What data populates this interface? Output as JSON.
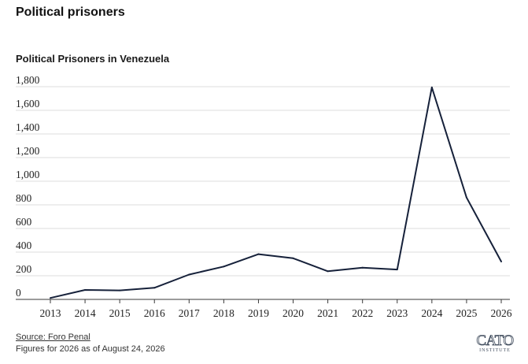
{
  "page": {
    "title": "Political prisoners"
  },
  "footer": {
    "source_label": "Source: Foro Penal",
    "note": "Figures for 2026 as of August 24, 2026"
  },
  "logo": {
    "name": "CATO",
    "subtitle": "INSTITUTE",
    "color": "#3e4a5b"
  },
  "chart_data": {
    "type": "line",
    "title": "Political Prisoners in Venezuela",
    "xlabel": "",
    "ylabel": "",
    "x": [
      "2013",
      "2014",
      "2015",
      "2016",
      "2017",
      "2018",
      "2019",
      "2020",
      "2021",
      "2022",
      "2023",
      "2024",
      "2025",
      "2026"
    ],
    "series": [
      {
        "values": [
          12,
          80,
          76,
          98,
          210,
          278,
          383,
          348,
          238,
          268,
          253,
          1794,
          862,
          320
        ],
        "color": "#16213a"
      }
    ],
    "ylim": [
      0,
      1800
    ],
    "yticks": [
      0,
      200,
      400,
      600,
      800,
      1000,
      1200,
      1400,
      1600,
      1800
    ],
    "ytick_labels": [
      "0",
      "200",
      "400",
      "600",
      "800",
      "1,000",
      "1,200",
      "1,400",
      "1,600",
      "1,800"
    ],
    "grid": true,
    "legend": "none"
  }
}
